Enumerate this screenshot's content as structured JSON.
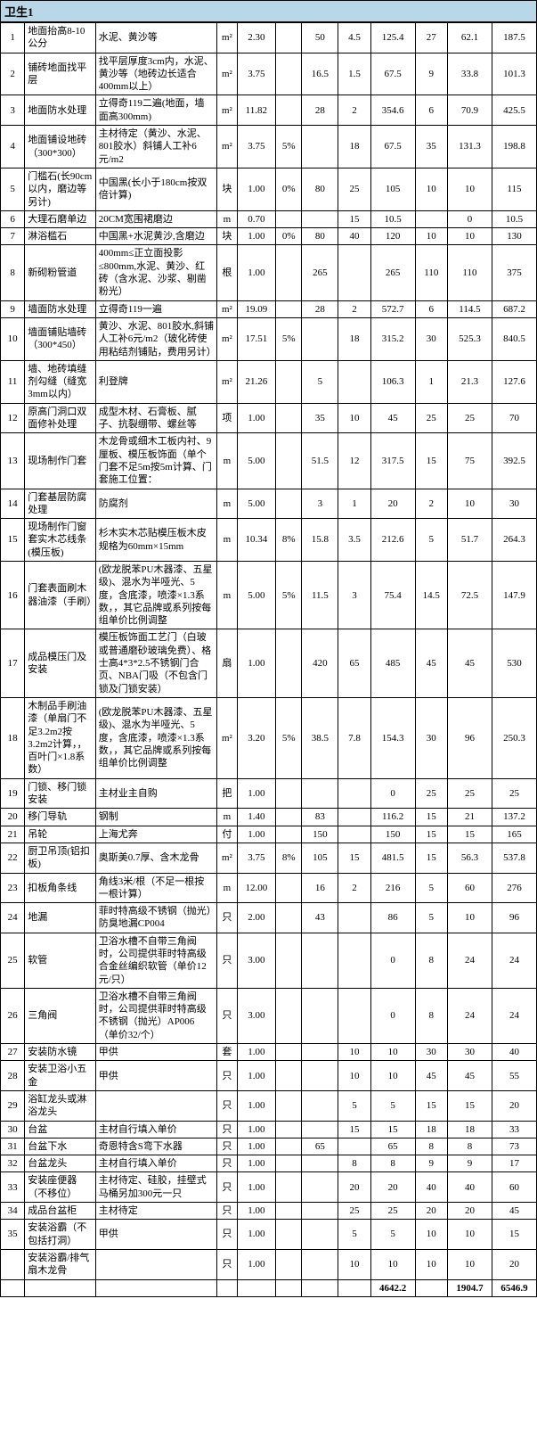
{
  "title": "卫生1",
  "rows": [
    {
      "n": "1",
      "name": "地面抬高8-10公分",
      "desc": "水泥、黄沙等",
      "u": "m²",
      "q": "2.30",
      "p": "",
      "v1": "50",
      "v2": "4.5",
      "v3": "125.4",
      "v4": "27",
      "v5": "62.1",
      "v6": "187.5"
    },
    {
      "n": "2",
      "name": "铺砖地面找平层",
      "desc": "找平层厚度3cm内，水泥、黄沙等（地砖边长适合400mm以上）",
      "u": "m²",
      "q": "3.75",
      "p": "",
      "v1": "16.5",
      "v2": "1.5",
      "v3": "67.5",
      "v4": "9",
      "v5": "33.8",
      "v6": "101.3"
    },
    {
      "n": "3",
      "name": "地面防水处理",
      "desc": "立得奇119二遍(地面，墙面高300mm)",
      "u": "m²",
      "q": "11.82",
      "p": "",
      "v1": "28",
      "v2": "2",
      "v3": "354.6",
      "v4": "6",
      "v5": "70.9",
      "v6": "425.5"
    },
    {
      "n": "4",
      "name": "地面铺设地砖（300*300）",
      "desc": "主材待定（黄沙、水泥、801胶水）斜铺人工补6元/m2",
      "u": "m²",
      "q": "3.75",
      "p": "5%",
      "v1": "",
      "v2": "18",
      "v3": "67.5",
      "v4": "35",
      "v5": "131.3",
      "v6": "198.8"
    },
    {
      "n": "5",
      "name": "门槛石(长90cm以内，磨边等另计)",
      "desc": "中国黑(长小于180cm按双倍计算)",
      "u": "块",
      "q": "1.00",
      "p": "0%",
      "v1": "80",
      "v2": "25",
      "v3": "105",
      "v4": "10",
      "v5": "10",
      "v6": "115"
    },
    {
      "n": "6",
      "name": "大理石磨单边",
      "desc": "20CM宽围裙磨边",
      "u": "m",
      "q": "0.70",
      "p": "",
      "v1": "",
      "v2": "15",
      "v3": "10.5",
      "v4": "",
      "v5": "0",
      "v6": "10.5"
    },
    {
      "n": "7",
      "name": "淋浴槛石",
      "desc": "中国黑+水泥黄沙,含磨边",
      "u": "块",
      "q": "1.00",
      "p": "0%",
      "v1": "80",
      "v2": "40",
      "v3": "120",
      "v4": "10",
      "v5": "10",
      "v6": "130"
    },
    {
      "n": "8",
      "name": "新砌粉管道",
      "desc": "400mm≤正立面投影≤800mm,水泥、黄沙、红砖（含水泥、沙浆、剔凿粉光）",
      "u": "根",
      "q": "1.00",
      "p": "",
      "v1": "265",
      "v2": "",
      "v3": "265",
      "v4": "110",
      "v5": "110",
      "v6": "375"
    },
    {
      "n": "9",
      "name": "墙面防水处理",
      "desc": "立得奇119一遍",
      "u": "m²",
      "q": "19.09",
      "p": "",
      "v1": "28",
      "v2": "2",
      "v3": "572.7",
      "v4": "6",
      "v5": "114.5",
      "v6": "687.2"
    },
    {
      "n": "10",
      "name": "墙面铺贴墙砖（300*450）",
      "desc": "黄沙、水泥、801胶水,斜铺人工补6元/m2（玻化砖使用粘结剂铺贴，费用另计）",
      "u": "m²",
      "q": "17.51",
      "p": "5%",
      "v1": "",
      "v2": "18",
      "v3": "315.2",
      "v4": "30",
      "v5": "525.3",
      "v6": "840.5"
    },
    {
      "n": "11",
      "name": "墙、地砖填缝剂勾缝（缝宽3mm以内）",
      "desc": "利登牌",
      "u": "m²",
      "q": "21.26",
      "p": "",
      "v1": "5",
      "v2": "",
      "v3": "106.3",
      "v4": "1",
      "v5": "21.3",
      "v6": "127.6"
    },
    {
      "n": "12",
      "name": "原高门洞口双面修补处理",
      "desc": "成型木材、石膏板、腻子、抗裂绷带、螺丝等",
      "u": "项",
      "q": "1.00",
      "p": "",
      "v1": "35",
      "v2": "10",
      "v3": "45",
      "v4": "25",
      "v5": "25",
      "v6": "70"
    },
    {
      "n": "13",
      "name": "现场制作门套",
      "desc": "木龙骨或细木工板内衬、9厘板、模压板饰面（单个门套不足5m按5m计算、门套施工位置：",
      "u": "m",
      "q": "5.00",
      "p": "",
      "v1": "51.5",
      "v2": "12",
      "v3": "317.5",
      "v4": "15",
      "v5": "75",
      "v6": "392.5"
    },
    {
      "n": "14",
      "name": "门套基层防腐处理",
      "desc": "防腐剂",
      "u": "m",
      "q": "5.00",
      "p": "",
      "v1": "3",
      "v2": "1",
      "v3": "20",
      "v4": "2",
      "v5": "10",
      "v6": "30"
    },
    {
      "n": "15",
      "name": "现场制作门窗套实木芯线条(模压板)",
      "desc": "杉木实木芯贴模压板木皮规格为60mm×15mm",
      "u": "m",
      "q": "10.34",
      "p": "8%",
      "v1": "15.8",
      "v2": "3.5",
      "v3": "212.6",
      "v4": "5",
      "v5": "51.7",
      "v6": "264.3"
    },
    {
      "n": "16",
      "name": "门套表面刷木器油漆（手刷）",
      "desc": "(欧龙脱苯PU木器漆、五星级)、混水为半哑光、5度，含底漆，喷漆×1.3系数，，其它品牌或系列按每组单价比例调整",
      "u": "m",
      "q": "5.00",
      "p": "5%",
      "v1": "11.5",
      "v2": "3",
      "v3": "75.4",
      "v4": "14.5",
      "v5": "72.5",
      "v6": "147.9"
    },
    {
      "n": "17",
      "name": "成品模压门及安装",
      "desc": "模压板饰面工艺门（白玻或普通磨砂玻璃免费）、格士高4*3*2.5不锈钢门合页、NBA门吸（不包含门锁及门锁安装）",
      "u": "扇",
      "q": "1.00",
      "p": "",
      "v1": "420",
      "v2": "65",
      "v3": "485",
      "v4": "45",
      "v5": "45",
      "v6": "530"
    },
    {
      "n": "18",
      "name": "木制品手刷油漆（单扇门不足3.2m2按3.2m2计算，，百叶门×1.8系数）",
      "desc": "(欧龙脱苯PU木器漆、五星级)、混水为半哑光、5度，含底漆，喷漆×1.3系数，，其它品牌或系列按每组单价比例调整",
      "u": "m²",
      "q": "3.20",
      "p": "5%",
      "v1": "38.5",
      "v2": "7.8",
      "v3": "154.3",
      "v4": "30",
      "v5": "96",
      "v6": "250.3"
    },
    {
      "n": "19",
      "name": "门锁、移门锁安装",
      "desc": "主材业主自购",
      "u": "把",
      "q": "1.00",
      "p": "",
      "v1": "",
      "v2": "",
      "v3": "0",
      "v4": "25",
      "v5": "25",
      "v6": "25"
    },
    {
      "n": "20",
      "name": "移门导轨",
      "desc": "钢制",
      "u": "m",
      "q": "1.40",
      "p": "",
      "v1": "83",
      "v2": "",
      "v3": "116.2",
      "v4": "15",
      "v5": "21",
      "v6": "137.2"
    },
    {
      "n": "21",
      "name": "吊轮",
      "desc": "上海尤奔",
      "u": "付",
      "q": "1.00",
      "p": "",
      "v1": "150",
      "v2": "",
      "v3": "150",
      "v4": "15",
      "v5": "15",
      "v6": "165"
    },
    {
      "n": "22",
      "name": "厨卫吊顶(铝扣板)",
      "desc": "奥斯美0.7厚、含木龙骨",
      "u": "m²",
      "q": "3.75",
      "p": "8%",
      "v1": "105",
      "v2": "15",
      "v3": "481.5",
      "v4": "15",
      "v5": "56.3",
      "v6": "537.8"
    },
    {
      "n": "23",
      "name": "扣板角条线",
      "desc": "角线3米/根（不足一根按一根计算）",
      "u": "m",
      "q": "12.00",
      "p": "",
      "v1": "16",
      "v2": "2",
      "v3": "216",
      "v4": "5",
      "v5": "60",
      "v6": "276"
    },
    {
      "n": "24",
      "name": "地漏",
      "desc": "菲时特高级不锈钢（抛光）防臭地漏CP004",
      "u": "只",
      "q": "2.00",
      "p": "",
      "v1": "43",
      "v2": "",
      "v3": "86",
      "v4": "5",
      "v5": "10",
      "v6": "96"
    },
    {
      "n": "25",
      "name": "软管",
      "desc": "卫浴水槽不自带三角阀时，公司提供菲时特高级合金丝编织软管（单价12元/只）",
      "u": "只",
      "q": "3.00",
      "p": "",
      "v1": "",
      "v2": "",
      "v3": "0",
      "v4": "8",
      "v5": "24",
      "v6": "24"
    },
    {
      "n": "26",
      "name": "三角阀",
      "desc": "卫浴水槽不自带三角阀时，公司提供菲时特高级不锈钢（抛光）AP006（单价32/个）",
      "u": "只",
      "q": "3.00",
      "p": "",
      "v1": "",
      "v2": "",
      "v3": "0",
      "v4": "8",
      "v5": "24",
      "v6": "24"
    },
    {
      "n": "27",
      "name": "安装防水镜",
      "desc": "甲供",
      "u": "套",
      "q": "1.00",
      "p": "",
      "v1": "",
      "v2": "10",
      "v3": "10",
      "v4": "30",
      "v5": "30",
      "v6": "40"
    },
    {
      "n": "28",
      "name": "安装卫浴小五金",
      "desc": "甲供",
      "u": "只",
      "q": "1.00",
      "p": "",
      "v1": "",
      "v2": "10",
      "v3": "10",
      "v4": "45",
      "v5": "45",
      "v6": "55"
    },
    {
      "n": "29",
      "name": "浴缸龙头或淋浴龙头",
      "desc": "",
      "u": "只",
      "q": "1.00",
      "p": "",
      "v1": "",
      "v2": "5",
      "v3": "5",
      "v4": "15",
      "v5": "15",
      "v6": "20"
    },
    {
      "n": "30",
      "name": "台盆",
      "desc": "主材自行填入单价",
      "u": "只",
      "q": "1.00",
      "p": "",
      "v1": "",
      "v2": "15",
      "v3": "15",
      "v4": "18",
      "v5": "18",
      "v6": "33"
    },
    {
      "n": "31",
      "name": "台盆下水",
      "desc": "奇恩特含S弯下水器",
      "u": "只",
      "q": "1.00",
      "p": "",
      "v1": "65",
      "v2": "",
      "v3": "65",
      "v4": "8",
      "v5": "8",
      "v6": "73"
    },
    {
      "n": "32",
      "name": "台盆龙头",
      "desc": "主材自行填入单价",
      "u": "只",
      "q": "1.00",
      "p": "",
      "v1": "",
      "v2": "8",
      "v3": "8",
      "v4": "9",
      "v5": "9",
      "v6": "17"
    },
    {
      "n": "33",
      "name": "安装座便器（不移位）",
      "desc": "主材待定、硅胶，挂壁式马桶另加300元一只",
      "u": "只",
      "q": "1.00",
      "p": "",
      "v1": "",
      "v2": "20",
      "v3": "20",
      "v4": "40",
      "v5": "40",
      "v6": "60"
    },
    {
      "n": "34",
      "name": "成品台盆柜",
      "desc": "主材待定",
      "u": "只",
      "q": "1.00",
      "p": "",
      "v1": "",
      "v2": "25",
      "v3": "25",
      "v4": "20",
      "v5": "20",
      "v6": "45"
    },
    {
      "n": "35",
      "name": "安装浴霸（不包括打洞）",
      "desc": "甲供",
      "u": "只",
      "q": "1.00",
      "p": "",
      "v1": "",
      "v2": "5",
      "v3": "5",
      "v4": "10",
      "v5": "10",
      "v6": "15"
    },
    {
      "n": "",
      "name": "安装浴霸/排气扇木龙骨",
      "desc": "",
      "u": "只",
      "q": "1.00",
      "p": "",
      "v1": "",
      "v2": "10",
      "v3": "10",
      "v4": "10",
      "v5": "10",
      "v6": "20"
    }
  ],
  "totals": {
    "v3": "4642.2",
    "v5": "1904.7",
    "v6": "6546.9"
  }
}
